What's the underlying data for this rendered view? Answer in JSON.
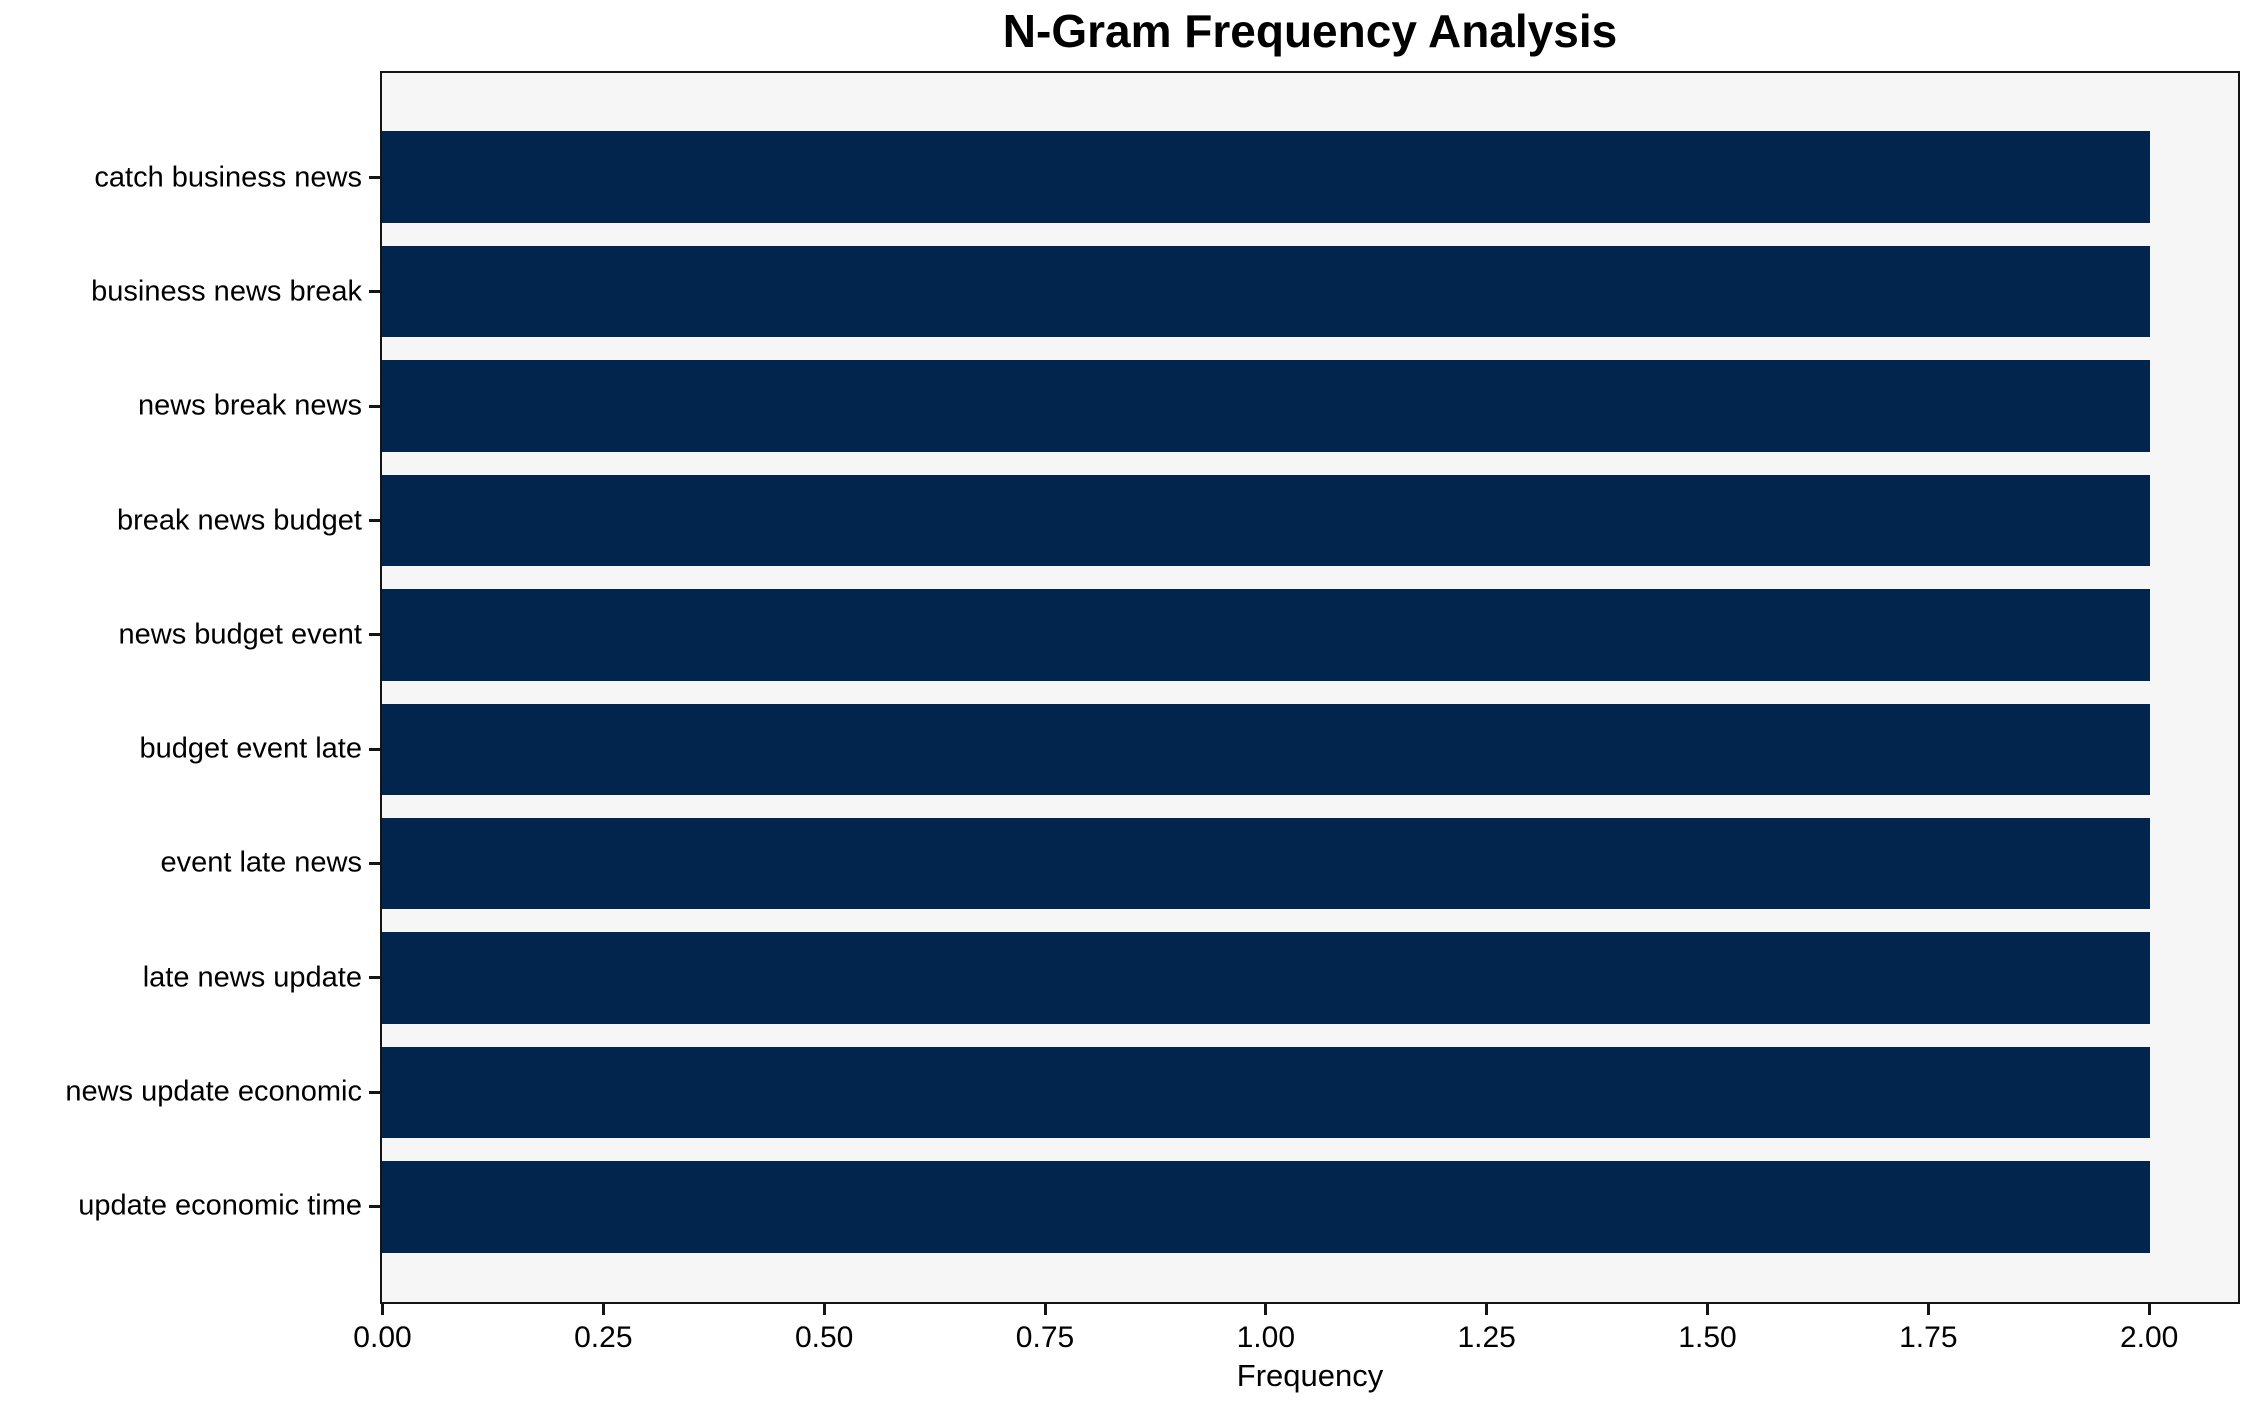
{
  "chart_data": {
    "type": "bar",
    "orientation": "horizontal",
    "title": "N-Gram Frequency Analysis",
    "xlabel": "Frequency",
    "ylabel": "",
    "categories": [
      "catch business news",
      "business news break",
      "news break news",
      "break news budget",
      "news budget event",
      "budget event late",
      "event late news",
      "late news update",
      "news update economic",
      "update economic time"
    ],
    "values": [
      2,
      2,
      2,
      2,
      2,
      2,
      2,
      2,
      2,
      2
    ],
    "xlim": [
      0,
      2.1
    ],
    "xticks": [
      {
        "value": 0.0,
        "label": "0.00"
      },
      {
        "value": 0.25,
        "label": "0.25"
      },
      {
        "value": 0.5,
        "label": "0.50"
      },
      {
        "value": 0.75,
        "label": "0.75"
      },
      {
        "value": 1.0,
        "label": "1.00"
      },
      {
        "value": 1.25,
        "label": "1.25"
      },
      {
        "value": 1.5,
        "label": "1.50"
      },
      {
        "value": 1.75,
        "label": "1.75"
      },
      {
        "value": 2.0,
        "label": "2.00"
      }
    ],
    "bar_height_frac": 0.8,
    "grid": false,
    "legend": false,
    "colors": {
      "bar": "#02254d",
      "plot_bg": "#f6f6f7",
      "spine": "#141414",
      "text": "#000000"
    }
  }
}
